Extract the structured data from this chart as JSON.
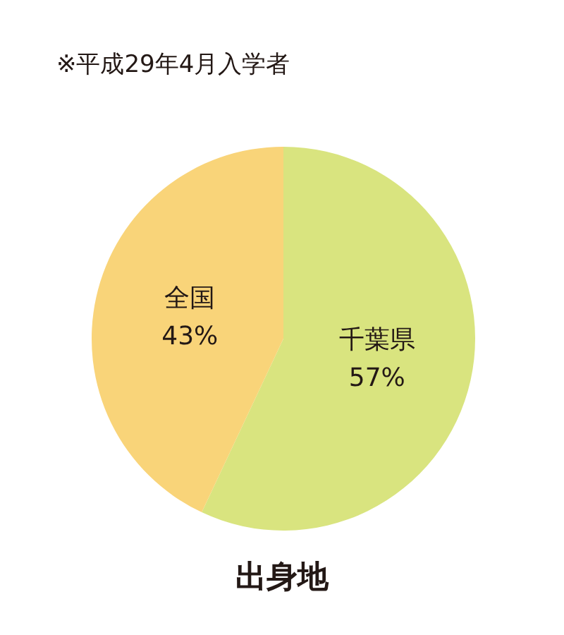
{
  "chart_data": {
    "type": "pie",
    "title": "出身地",
    "annotations": [
      "※平成29年4月入学者"
    ],
    "categories": [
      "千葉県",
      "全国"
    ],
    "values": [
      57,
      43
    ],
    "colors": [
      "#d9e47f",
      "#f9d479"
    ],
    "value_labels": [
      "57%",
      "43%"
    ]
  }
}
